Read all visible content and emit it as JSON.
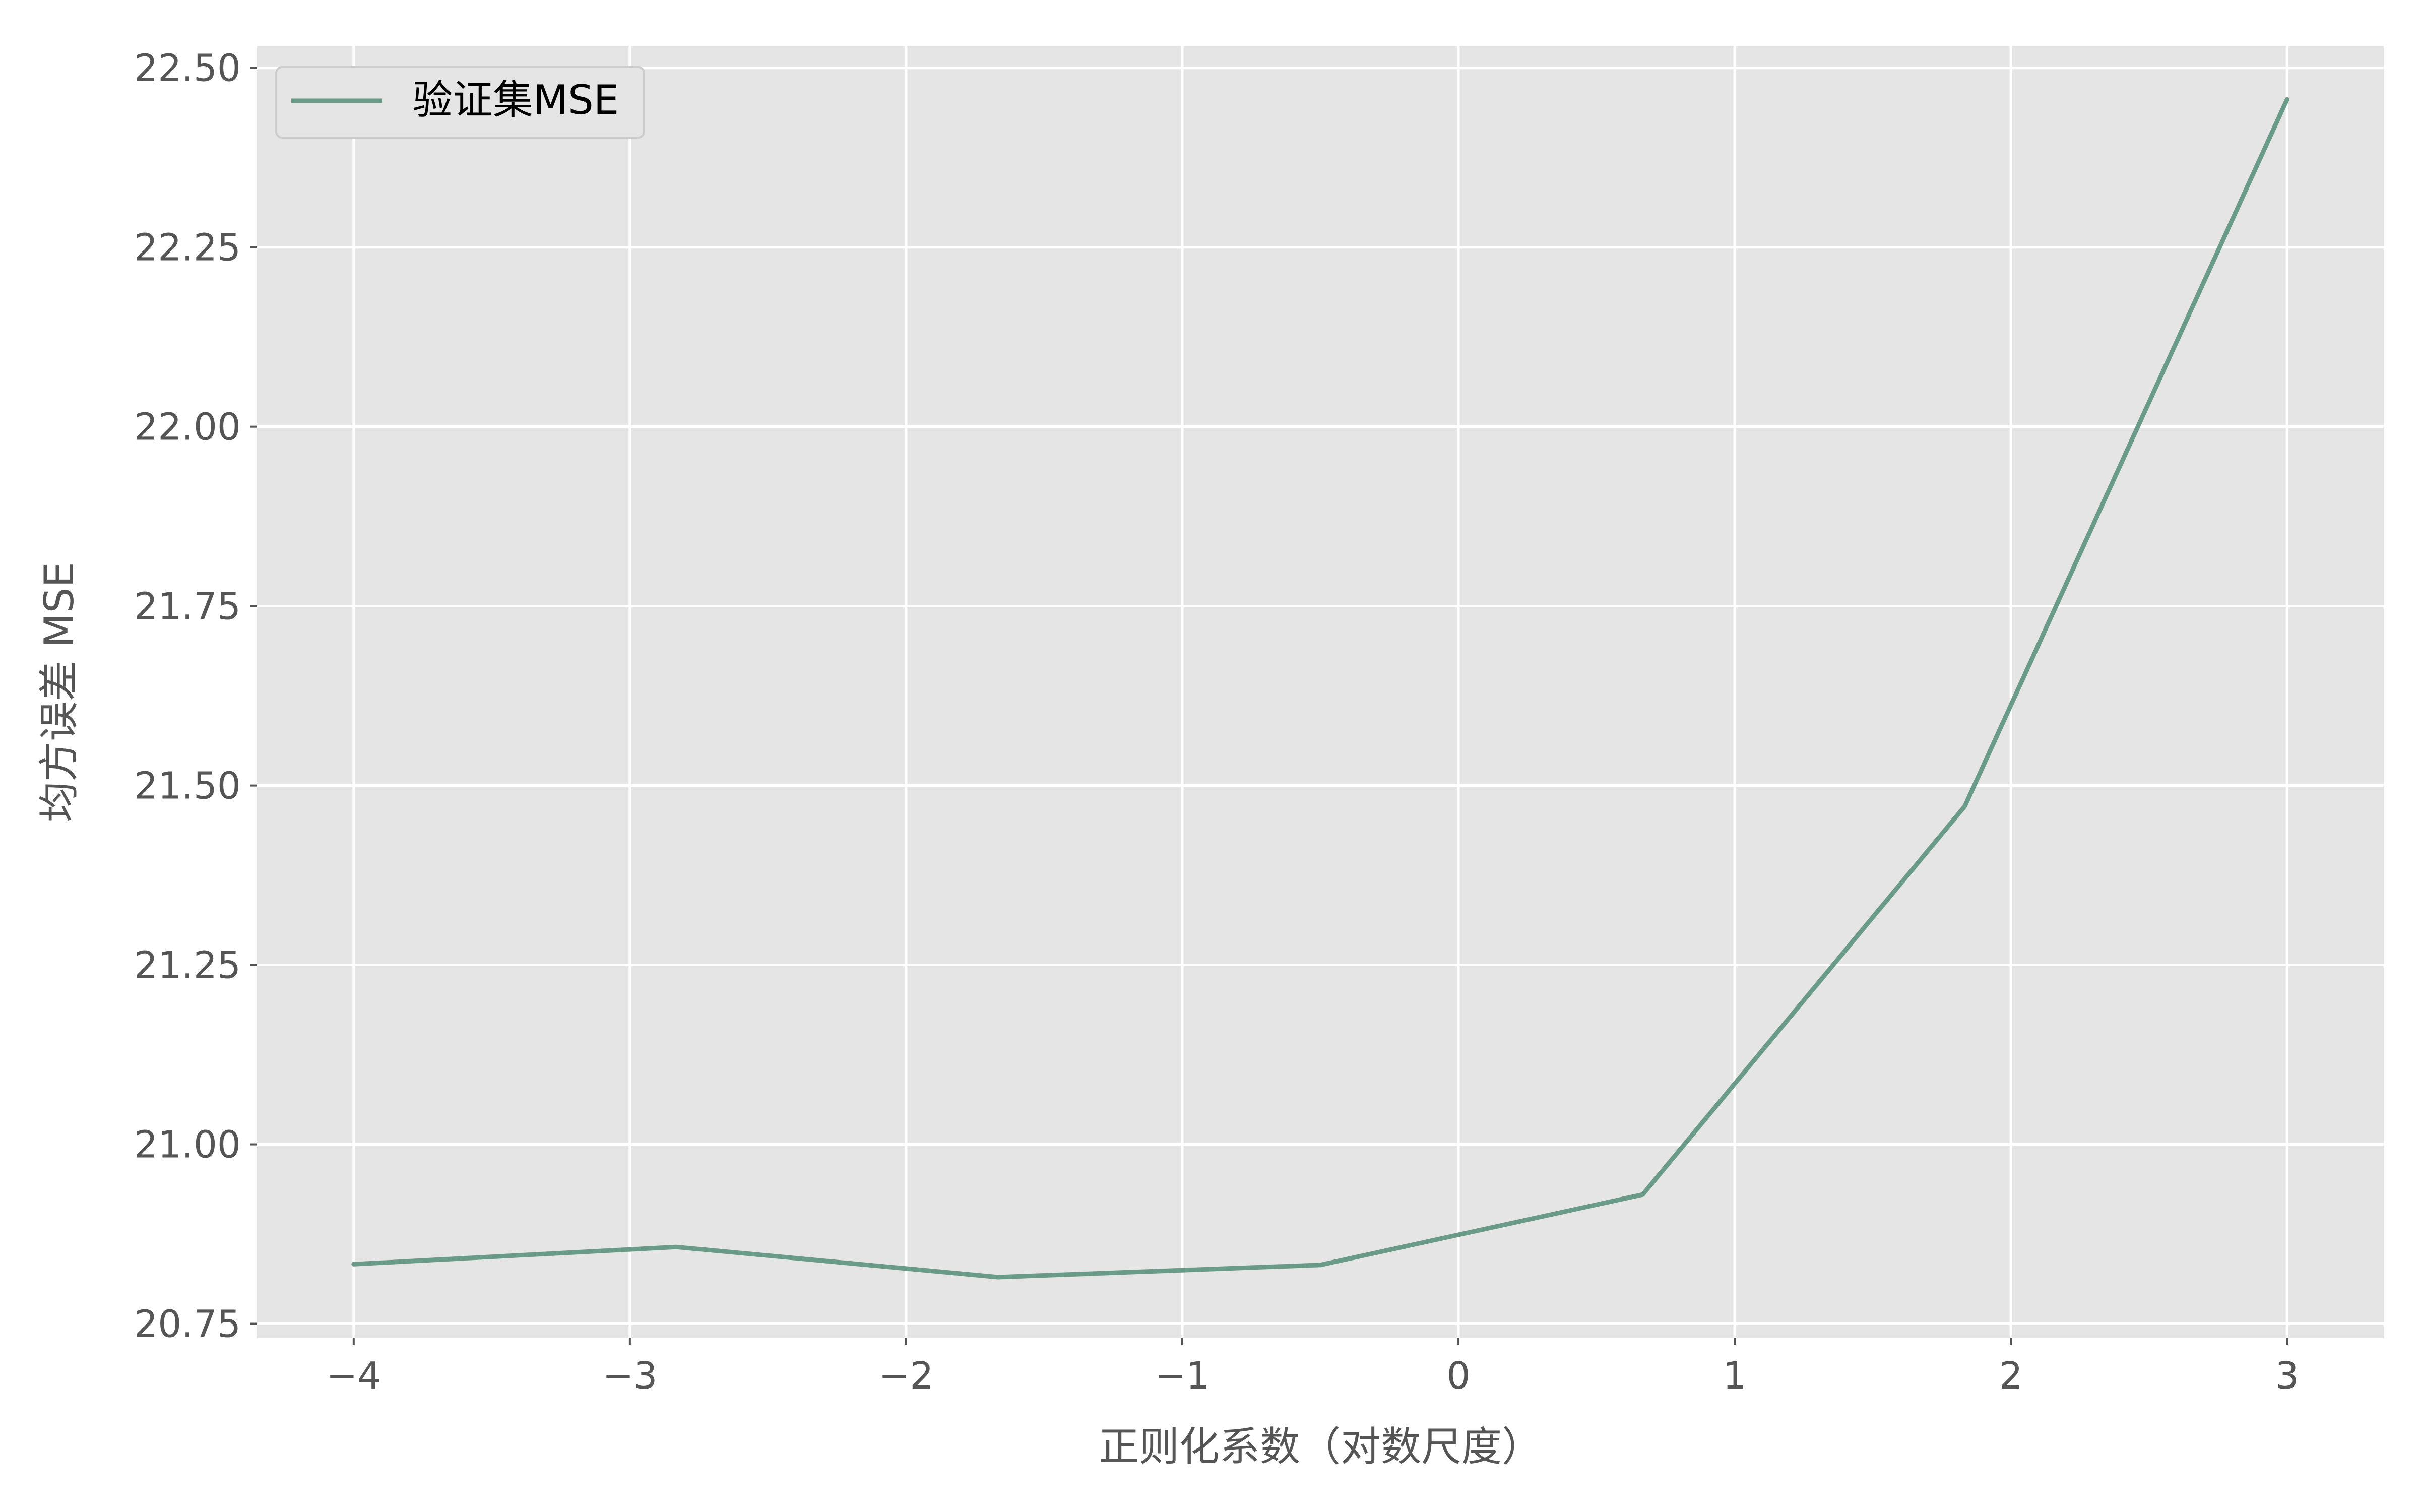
{
  "chart_data": {
    "type": "line",
    "title": "",
    "xlabel": "正则化系数（对数尺度）",
    "ylabel": "均方误差 MSE",
    "xlim": [
      -4.35,
      3.35
    ],
    "ylim": [
      20.73,
      22.53
    ],
    "x_ticks": [
      {
        "value": -4,
        "label": "−4"
      },
      {
        "value": -3,
        "label": "−3"
      },
      {
        "value": -2,
        "label": "−2"
      },
      {
        "value": -1,
        "label": "−1"
      },
      {
        "value": 0,
        "label": "0"
      },
      {
        "value": 1,
        "label": "1"
      },
      {
        "value": 2,
        "label": "2"
      },
      {
        "value": 3,
        "label": "3"
      }
    ],
    "y_ticks": [
      {
        "value": 20.75,
        "label": "20.75"
      },
      {
        "value": 21.0,
        "label": "21.00"
      },
      {
        "value": 21.25,
        "label": "21.25"
      },
      {
        "value": 21.5,
        "label": "21.50"
      },
      {
        "value": 21.75,
        "label": "21.75"
      },
      {
        "value": 22.0,
        "label": "22.00"
      },
      {
        "value": 22.25,
        "label": "22.25"
      },
      {
        "value": 22.5,
        "label": "22.50"
      }
    ],
    "grid": true,
    "legend_position": "top-left",
    "series": [
      {
        "name": "验证集MSE",
        "color": "#6a9a88",
        "x": [
          -4.0,
          -2.833,
          -1.667,
          -0.5,
          0.667,
          1.833,
          3.0
        ],
        "y": [
          20.833,
          20.857,
          20.815,
          20.832,
          20.93,
          21.471,
          22.456
        ]
      }
    ]
  }
}
